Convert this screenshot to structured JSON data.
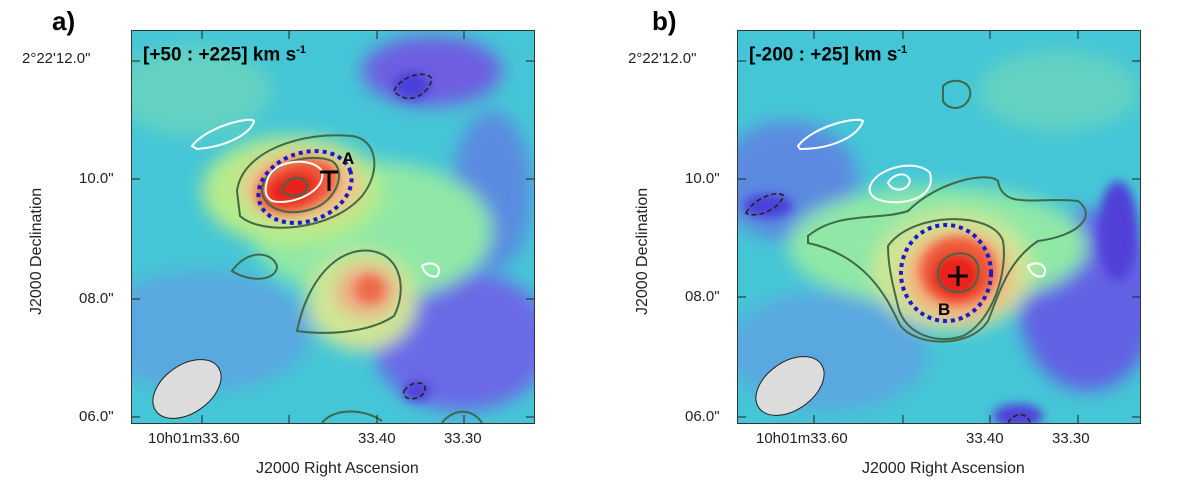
{
  "panels": [
    {
      "letter": "a)",
      "velocity_range": "[+50 : +225] km s",
      "velocity_unit_exp": "-1",
      "source_label": "A",
      "y_ticks": [
        "2°22'12.0\"",
        "10.0\"",
        "08.0\"",
        "06.0\""
      ],
      "x_ticks": [
        "10h01m33.60",
        "33.40",
        "33.30"
      ],
      "y_axis_label": "J2000 Declination",
      "x_axis_label": "J2000 Right Ascension"
    },
    {
      "letter": "b)",
      "velocity_range": "[-200 : +25] km s",
      "velocity_unit_exp": "-1",
      "source_label": "B",
      "y_ticks": [
        "2°22'12.0\"",
        "10.0\"",
        "08.0\"",
        "06.0\""
      ],
      "x_ticks": [
        "10h01m33.60",
        "33.40",
        "33.30"
      ],
      "y_axis_label": "J2000 Declination",
      "x_axis_label": "J2000 Right Ascension"
    }
  ],
  "colors": {
    "map_low": "#4a3fd8",
    "map_mid": "#7fe0b0",
    "map_high": "#e8221a",
    "positive_contour": "#3f6a4a",
    "negative_contour": "#ffffff",
    "aperture": "#1a1ad0",
    "beam_fill": "#dcdcdc"
  }
}
